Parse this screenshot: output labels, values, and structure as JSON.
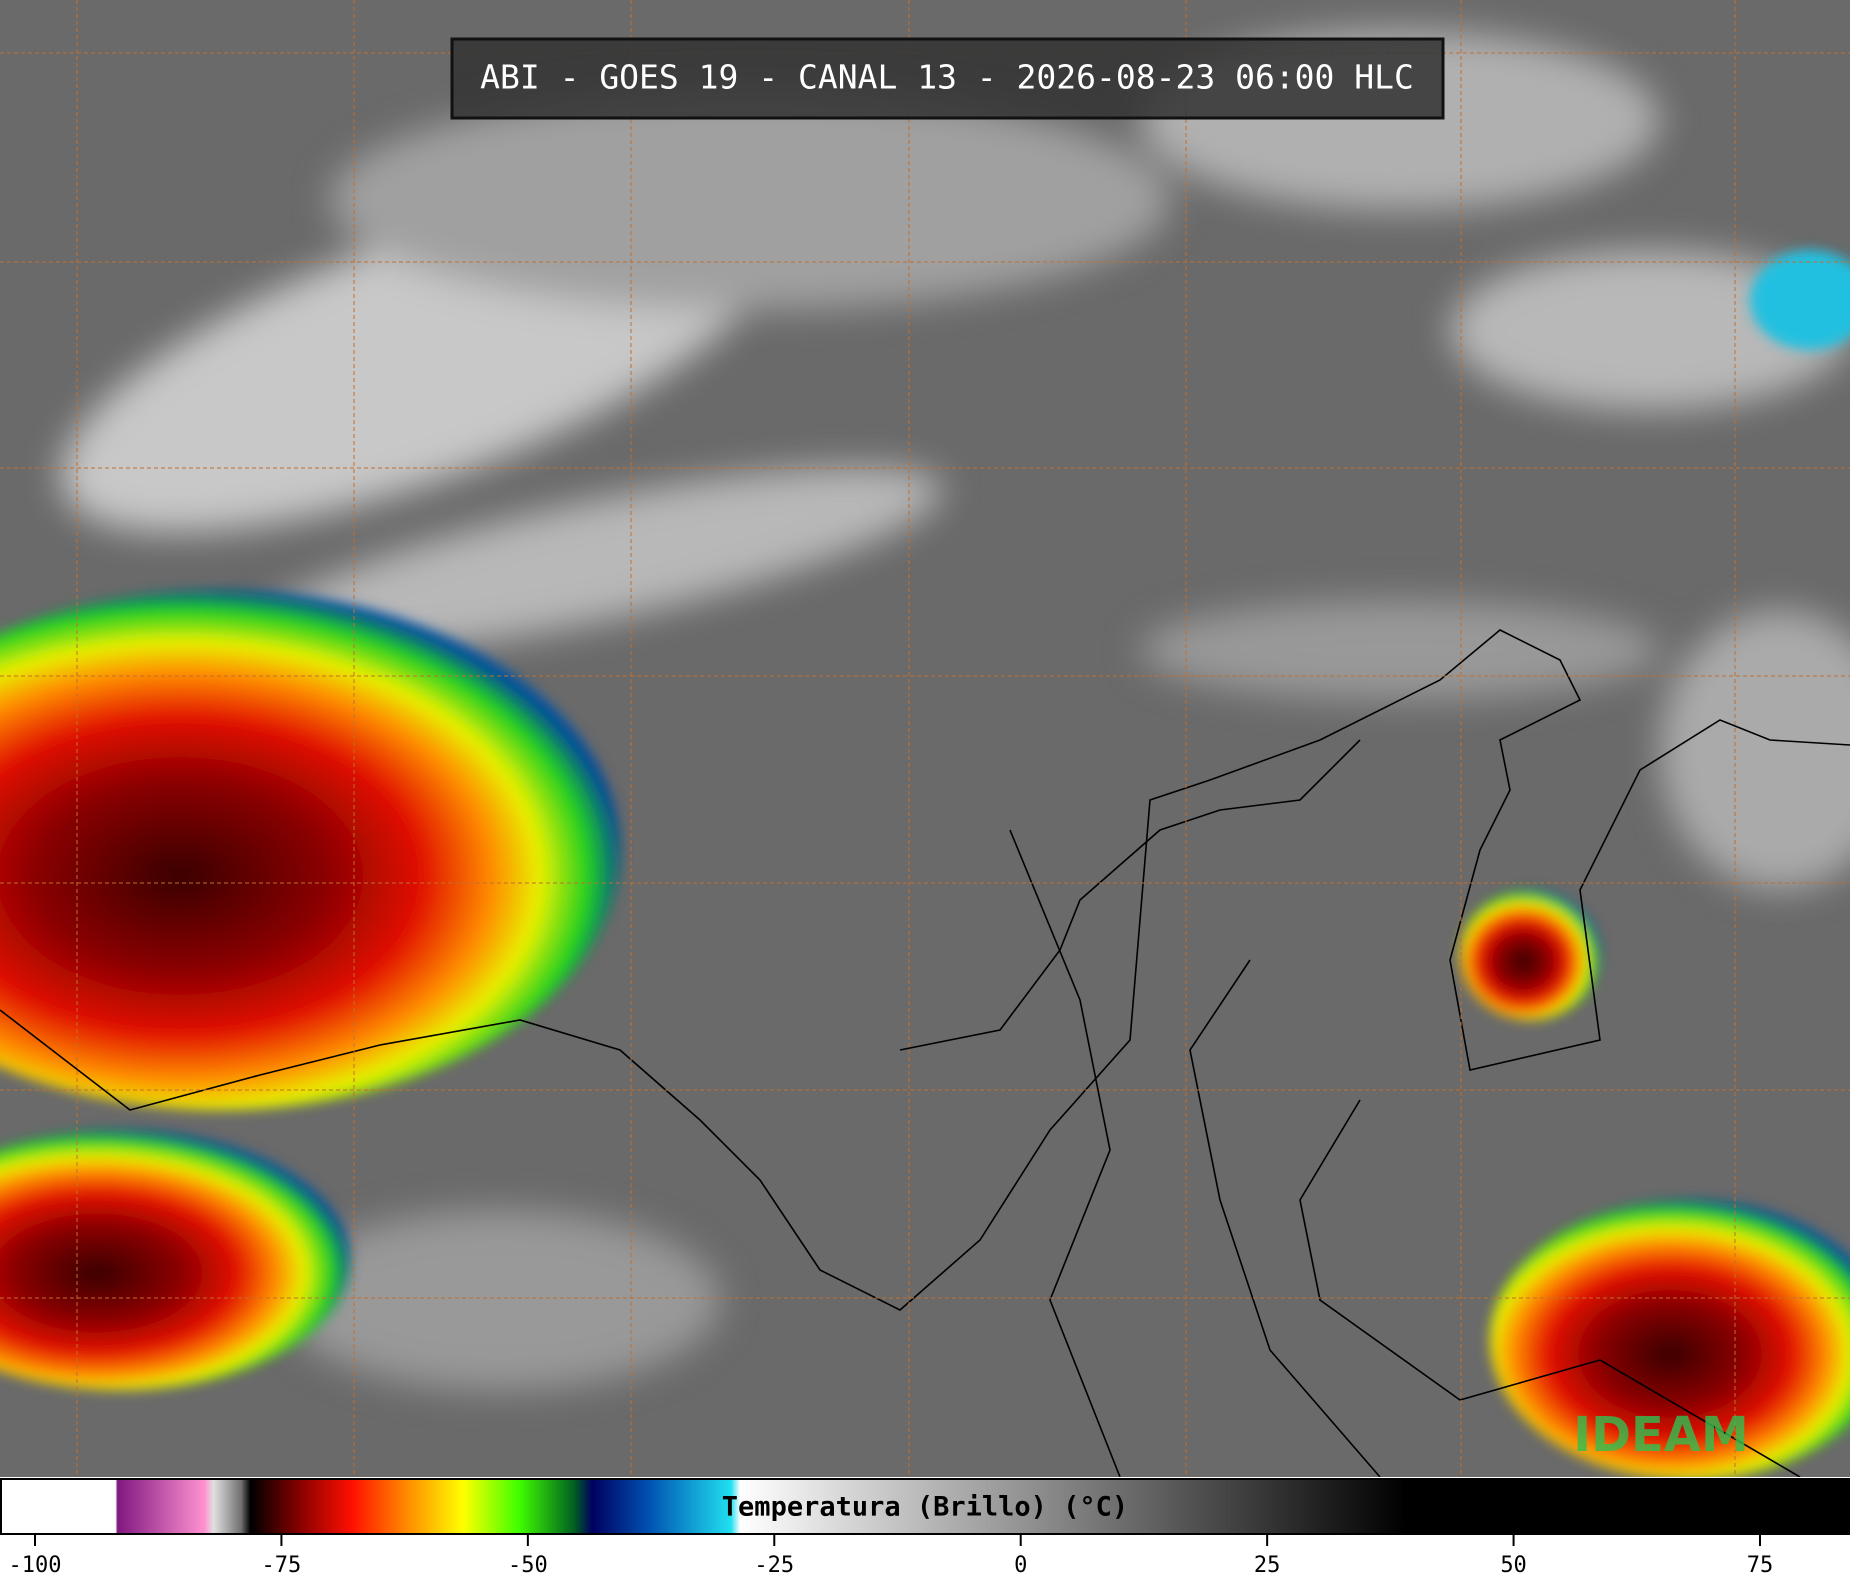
{
  "title": "ABI - GOES 19 - CANAL 13 - 2026-08-23 06:00 HLC",
  "colorbar": {
    "label": "Temperatura (Brillo) (°C)",
    "ticks": [
      -100,
      -75,
      -50,
      -25,
      0,
      25,
      50,
      75
    ],
    "xlim": [
      -100,
      75
    ]
  },
  "logo": "IDEAM"
}
